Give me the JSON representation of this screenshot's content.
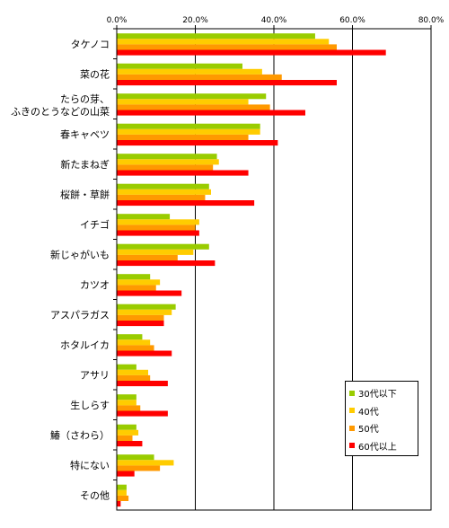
{
  "chart_data": {
    "type": "bar",
    "orientation": "horizontal",
    "categories": [
      "タケノコ",
      "菜の花",
      "たらの芽、\nふきのとうなどの山菜",
      "春キャベツ",
      "新たまねぎ",
      "桜餅・草餅",
      "イチゴ",
      "新じゃがいも",
      "カツオ",
      "アスパラガス",
      "ホタルイカ",
      "アサリ",
      "生しらす",
      "鰆（さわら）",
      "特にない",
      "その他"
    ],
    "series": [
      {
        "name": "30代以下",
        "color": "#99cc00",
        "values": [
          50.5,
          32.0,
          38.0,
          36.5,
          25.5,
          23.5,
          13.5,
          23.5,
          8.5,
          15.0,
          6.5,
          5.0,
          5.0,
          5.0,
          9.5,
          2.5
        ]
      },
      {
        "name": "40代",
        "color": "#ffcc00",
        "values": [
          54.0,
          37.0,
          33.5,
          36.5,
          26.0,
          24.0,
          21.0,
          19.5,
          11.0,
          14.0,
          8.5,
          8.0,
          5.0,
          5.5,
          14.5,
          2.5
        ]
      },
      {
        "name": "50代",
        "color": "#ff9900",
        "values": [
          56.0,
          42.0,
          39.0,
          33.5,
          24.5,
          22.5,
          20.0,
          15.5,
          10.0,
          12.0,
          9.5,
          8.5,
          6.0,
          4.0,
          11.0,
          3.0
        ]
      },
      {
        "name": "60代以上",
        "color": "#ff0000",
        "values": [
          68.5,
          56.0,
          48.0,
          41.0,
          33.5,
          35.0,
          21.0,
          25.0,
          16.5,
          12.0,
          14.0,
          13.0,
          13.0,
          6.5,
          4.5,
          1.0
        ]
      }
    ],
    "xlim": [
      0,
      80
    ],
    "xticks": [
      "0.0%",
      "20.0%",
      "40.0%",
      "60.0%",
      "80.0%"
    ],
    "grid": true,
    "legend_position": "bottom-right"
  }
}
